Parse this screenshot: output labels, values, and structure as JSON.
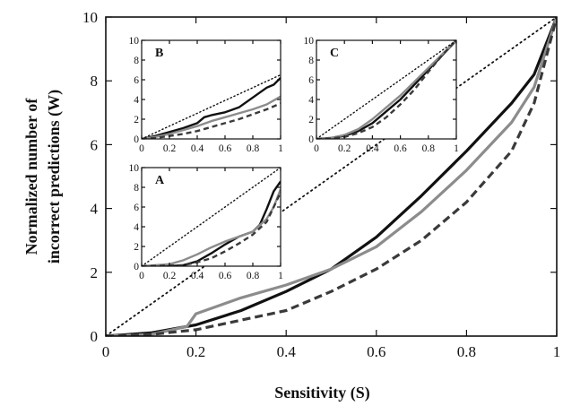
{
  "chart_data": [
    {
      "id": "main",
      "type": "line",
      "title": "",
      "xlabel": "Sensitivity (S)",
      "ylabel_lines": [
        "Normalized number of",
        "incorrect predictions (W)"
      ],
      "xlim": [
        0,
        1
      ],
      "ylim": [
        0,
        10
      ],
      "xticks": [
        0,
        0.2,
        0.4,
        0.6,
        0.8,
        1
      ],
      "xtick_labels": [
        "0",
        "0.2",
        "0.4",
        "0.6",
        "0.8",
        "1"
      ],
      "yticks": [
        0,
        2,
        4,
        6,
        8,
        10
      ],
      "ytick_labels": [
        "0",
        "2",
        "4",
        "6",
        "8",
        "10"
      ],
      "grid": false,
      "series": [
        {
          "style": "solid-black",
          "color": "#111111",
          "x": [
            0,
            0.1,
            0.2,
            0.3,
            0.4,
            0.5,
            0.6,
            0.7,
            0.8,
            0.9,
            0.95,
            1
          ],
          "y": [
            0,
            0.1,
            0.35,
            0.8,
            1.4,
            2.1,
            3.1,
            4.4,
            5.8,
            7.3,
            8.2,
            10
          ]
        },
        {
          "style": "solid-gray",
          "color": "#8c8c8c",
          "x": [
            0,
            0.1,
            0.18,
            0.2,
            0.3,
            0.4,
            0.5,
            0.6,
            0.7,
            0.8,
            0.9,
            0.95,
            1
          ],
          "y": [
            0,
            0.05,
            0.3,
            0.7,
            1.2,
            1.6,
            2.1,
            2.8,
            3.9,
            5.2,
            6.7,
            7.8,
            10
          ]
        },
        {
          "style": "dashed-dark",
          "color": "#3a3a3a",
          "x": [
            0,
            0.1,
            0.2,
            0.3,
            0.4,
            0.5,
            0.6,
            0.7,
            0.8,
            0.9,
            0.95,
            1
          ],
          "y": [
            0,
            0.05,
            0.2,
            0.5,
            0.8,
            1.4,
            2.1,
            3.0,
            4.2,
            5.8,
            7.3,
            10
          ]
        },
        {
          "style": "dotted-diagonal",
          "color": "#111111",
          "x": [
            0,
            1
          ],
          "y": [
            0,
            10
          ]
        }
      ]
    },
    {
      "id": "inset-B",
      "type": "line",
      "panel_label": "B",
      "xlim": [
        0,
        1
      ],
      "ylim": [
        0,
        10
      ],
      "xticks": [
        0,
        0.2,
        0.4,
        0.6,
        0.8,
        1
      ],
      "xtick_labels": [
        "0",
        "0.2",
        "0.4",
        "0.6",
        "0.8",
        "1"
      ],
      "yticks": [
        0,
        2,
        4,
        6,
        8,
        10
      ],
      "ytick_labels": [
        "0",
        "2",
        "4",
        "6",
        "8",
        "10"
      ],
      "series": [
        {
          "style": "solid-black",
          "color": "#111111",
          "x": [
            0,
            0.1,
            0.2,
            0.3,
            0.4,
            0.45,
            0.5,
            0.6,
            0.7,
            0.8,
            0.9,
            0.95,
            1
          ],
          "y": [
            0,
            0.3,
            0.7,
            1.1,
            1.6,
            2.2,
            2.4,
            2.7,
            3.2,
            4.2,
            5.2,
            5.5,
            6.2
          ]
        },
        {
          "style": "solid-gray",
          "color": "#8c8c8c",
          "x": [
            0,
            0.1,
            0.2,
            0.3,
            0.4,
            0.5,
            0.6,
            0.7,
            0.8,
            0.9,
            0.95,
            1
          ],
          "y": [
            0,
            0.2,
            0.5,
            0.9,
            1.3,
            1.8,
            2.2,
            2.6,
            3.0,
            3.5,
            3.9,
            4.3
          ]
        },
        {
          "style": "dashed-dark",
          "color": "#3a3a3a",
          "x": [
            0,
            0.1,
            0.2,
            0.3,
            0.4,
            0.5,
            0.6,
            0.7,
            0.8,
            0.9,
            1
          ],
          "y": [
            0,
            0.1,
            0.3,
            0.5,
            0.8,
            1.2,
            1.6,
            2.0,
            2.5,
            3.0,
            3.6
          ]
        },
        {
          "style": "dotted-diagonal",
          "color": "#111111",
          "x": [
            0,
            1
          ],
          "y": [
            0,
            6.5
          ]
        }
      ]
    },
    {
      "id": "inset-C",
      "type": "line",
      "panel_label": "C",
      "xlim": [
        0,
        1
      ],
      "ylim": [
        0,
        10
      ],
      "xticks": [
        0,
        0.2,
        0.4,
        0.6,
        0.8,
        1
      ],
      "xtick_labels": [
        "0",
        "0.2",
        "0.4",
        "0.6",
        "0.8",
        "1"
      ],
      "yticks": [
        0,
        2,
        4,
        6,
        8,
        10
      ],
      "ytick_labels": [
        "0",
        "2",
        "4",
        "6",
        "8",
        "10"
      ],
      "series": [
        {
          "style": "solid-black",
          "color": "#111111",
          "x": [
            0,
            0.1,
            0.2,
            0.3,
            0.4,
            0.5,
            0.6,
            0.7,
            0.8,
            0.9,
            1
          ],
          "y": [
            0,
            0.1,
            0.3,
            0.8,
            1.6,
            2.8,
            4.0,
            5.5,
            7.0,
            8.5,
            10
          ]
        },
        {
          "style": "solid-gray",
          "color": "#8c8c8c",
          "x": [
            0,
            0.1,
            0.2,
            0.3,
            0.4,
            0.5,
            0.6,
            0.7,
            0.8,
            0.9,
            1
          ],
          "y": [
            0,
            0.1,
            0.4,
            1.0,
            2.0,
            3.2,
            4.4,
            5.8,
            7.2,
            8.6,
            10
          ]
        },
        {
          "style": "dashed-dark",
          "color": "#3a3a3a",
          "x": [
            0,
            0.1,
            0.2,
            0.3,
            0.4,
            0.5,
            0.6,
            0.7,
            0.8,
            0.9,
            1
          ],
          "y": [
            0,
            0.05,
            0.2,
            0.6,
            1.2,
            2.2,
            3.5,
            5.0,
            6.8,
            8.5,
            10
          ]
        },
        {
          "style": "dotted-diagonal",
          "color": "#111111",
          "x": [
            0,
            1
          ],
          "y": [
            0,
            10
          ]
        }
      ]
    },
    {
      "id": "inset-A",
      "type": "line",
      "panel_label": "A",
      "xlim": [
        0,
        1
      ],
      "ylim": [
        0,
        10
      ],
      "xticks": [
        0,
        0.2,
        0.4,
        0.6,
        0.8,
        1
      ],
      "xtick_labels": [
        "0",
        "0.2",
        "0.4",
        "0.6",
        "0.8",
        "1"
      ],
      "yticks": [
        0,
        2,
        4,
        6,
        8,
        10
      ],
      "ytick_labels": [
        "0",
        "2",
        "4",
        "6",
        "8",
        "10"
      ],
      "series": [
        {
          "style": "solid-black",
          "color": "#111111",
          "x": [
            0,
            0.2,
            0.3,
            0.4,
            0.5,
            0.6,
            0.7,
            0.8,
            0.85,
            0.9,
            0.95,
            1
          ],
          "y": [
            0,
            0,
            0.1,
            0.5,
            1.3,
            2.2,
            3.0,
            3.5,
            4.2,
            5.8,
            7.6,
            8.6
          ]
        },
        {
          "style": "solid-gray",
          "color": "#8c8c8c",
          "x": [
            0,
            0.2,
            0.3,
            0.4,
            0.5,
            0.6,
            0.7,
            0.8,
            0.9,
            0.95,
            1
          ],
          "y": [
            0,
            0.2,
            0.6,
            1.2,
            1.9,
            2.5,
            3.0,
            3.5,
            4.8,
            6.0,
            7.8
          ]
        },
        {
          "style": "dashed-dark",
          "color": "#3a3a3a",
          "x": [
            0,
            0.3,
            0.4,
            0.5,
            0.6,
            0.7,
            0.8,
            0.9,
            0.95,
            1
          ],
          "y": [
            0,
            0.1,
            0.4,
            0.8,
            1.5,
            2.3,
            3.2,
            4.5,
            6.0,
            7.5
          ]
        },
        {
          "style": "dotted-diagonal",
          "color": "#111111",
          "x": [
            0,
            1
          ],
          "y": [
            0,
            10
          ]
        }
      ]
    }
  ]
}
